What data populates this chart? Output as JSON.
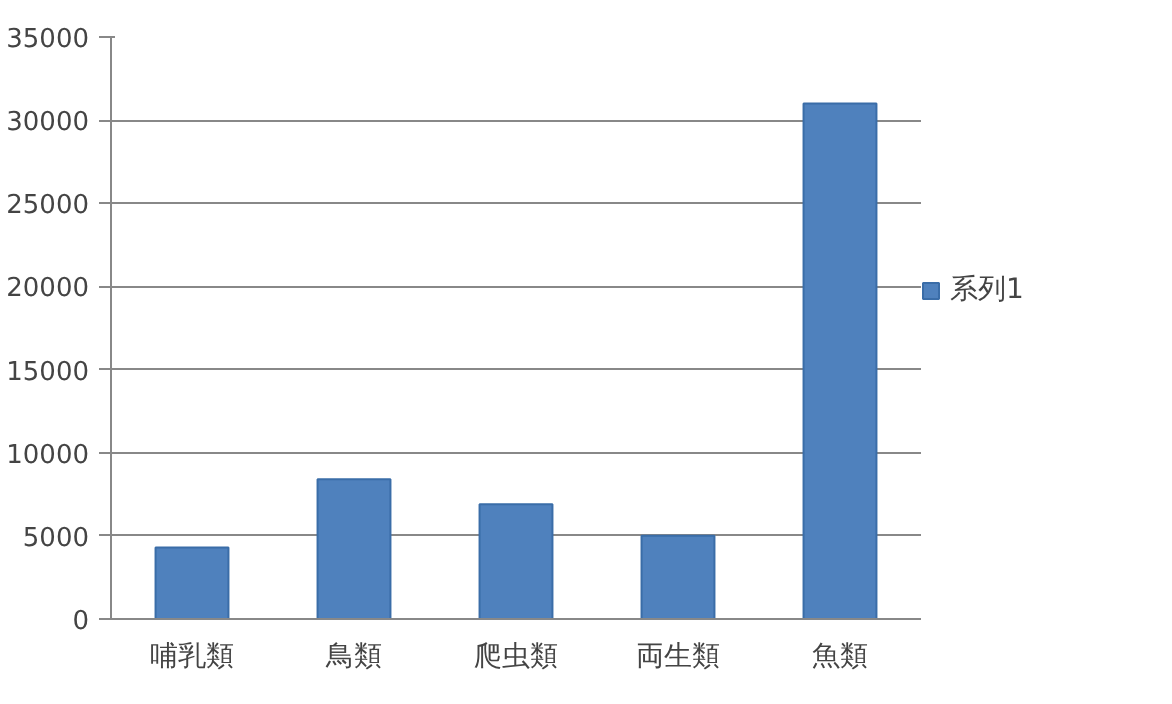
{
  "chart_data": {
    "type": "bar",
    "categories": [
      "哺乳類",
      "鳥類",
      "爬虫類",
      "両生類",
      "魚類"
    ],
    "series": [
      {
        "name": "系列1",
        "color": "#4f81bd",
        "values": [
          4300,
          8400,
          6900,
          5000,
          31000
        ]
      }
    ],
    "ylim": [
      0,
      35000
    ],
    "yticks": [
      0,
      5000,
      10000,
      15000,
      20000,
      25000,
      30000,
      35000
    ],
    "grid": "y",
    "legend": "right"
  }
}
